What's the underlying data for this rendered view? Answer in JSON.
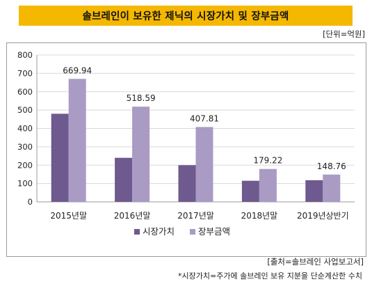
{
  "title": "솔브레인이 보유한 제닉의 시장가치 및 장부금액",
  "unit_note": "[단위=억원]",
  "source_note": "[출처=솔브레인 사업보고서]",
  "footnote": "*시장가치=주가에 솔브레인 보유 지분을 단순계산한 수치",
  "colors": {
    "title_bg": "#f5b800",
    "market": "#6e5a8e",
    "book": "#a99bc4",
    "grid": "#d9d9d9",
    "axis": "#9a9a9a"
  },
  "chart_data": {
    "type": "bar",
    "categories": [
      "2015년말",
      "2016년말",
      "2017년말",
      "2018년말",
      "2019년상반기"
    ],
    "series": [
      {
        "name": "시장가치",
        "values": [
          480,
          240,
          200,
          115,
          118
        ],
        "color": "#6e5a8e"
      },
      {
        "name": "장부금액",
        "values": [
          669.94,
          518.59,
          407.81,
          179.22,
          148.76
        ],
        "color": "#a99bc4",
        "data_labels": [
          "669.94",
          "518.59",
          "407.81",
          "179.22",
          "148.76"
        ]
      }
    ],
    "ylim": [
      0,
      800
    ],
    "yticks": [
      0,
      100,
      200,
      300,
      400,
      500,
      600,
      700,
      800
    ],
    "grid": true,
    "legend_position": "bottom"
  }
}
